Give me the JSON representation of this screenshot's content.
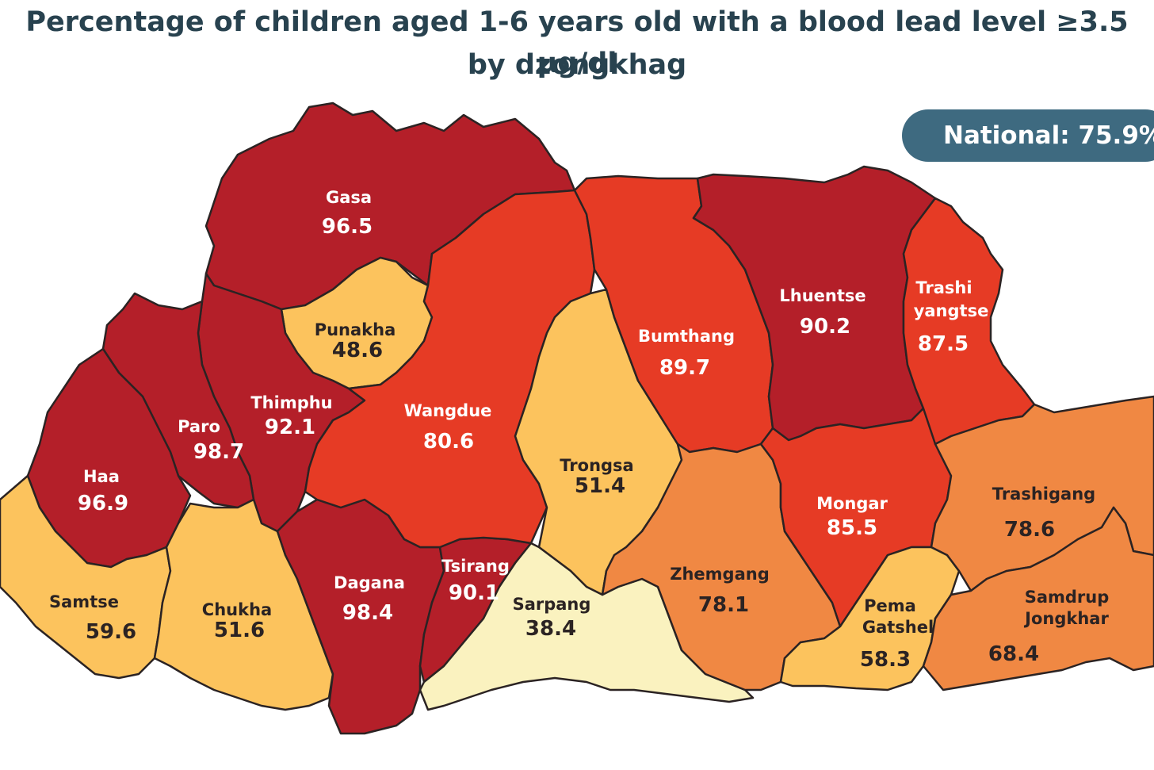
{
  "title_line1": "Percentage of children aged 1-6 years old with a blood lead level ≥3.5 µg/dl",
  "title_line2": "by dzongkhag",
  "national_label": "National: 75.9%",
  "colors": {
    "dark_red": "#b41f29",
    "red_orange": "#e63b25",
    "orange": "#f08843",
    "light_orange": "#fcc35d",
    "pale_yellow": "#faf2bf",
    "title": "#28424f",
    "badge": "#3e6a80"
  },
  "dzongkhags": [
    {
      "name": "Gasa",
      "value": "96.5"
    },
    {
      "name": "Punakha",
      "value": "48.6"
    },
    {
      "name": "Thimphu",
      "value": "92.1"
    },
    {
      "name": "Paro",
      "value": "98.7"
    },
    {
      "name": "Haa",
      "value": "96.9"
    },
    {
      "name": "Samtse",
      "value": "59.6"
    },
    {
      "name": "Chukha",
      "value": "51.6"
    },
    {
      "name": "Dagana",
      "value": "98.4"
    },
    {
      "name": "Tsirang",
      "value": "90.1"
    },
    {
      "name": "Wangdue",
      "value": "80.6"
    },
    {
      "name": "Trongsa",
      "value": "51.4"
    },
    {
      "name": "Sarpang",
      "value": "38.4"
    },
    {
      "name": "Bumthang",
      "value": "89.7"
    },
    {
      "name": "Zhemgang",
      "value": "78.1"
    },
    {
      "name": "Lhuentse",
      "value": "90.2"
    },
    {
      "name": "Mongar",
      "value": "85.5"
    },
    {
      "name": "Pema Gatshel",
      "value": "58.3"
    },
    {
      "name": "Trashi yangtse",
      "value": "87.5"
    },
    {
      "name": "Trashigang",
      "value": "78.6"
    },
    {
      "name": "Samdrup Jongkhar",
      "value": "68.4"
    }
  ]
}
